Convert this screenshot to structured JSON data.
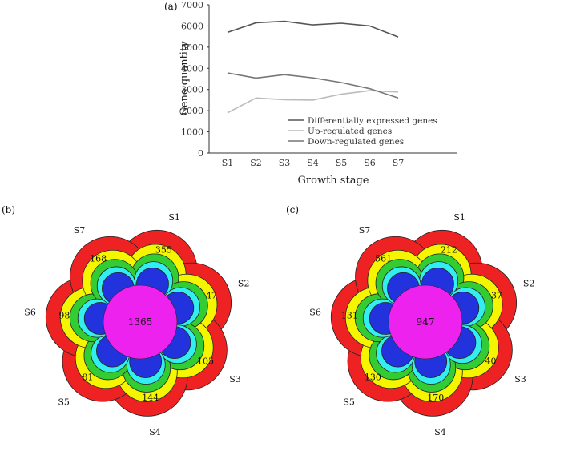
{
  "chart_data": [
    {
      "panel": "(a)",
      "type": "line",
      "x": [
        "S1",
        "S2",
        "S3",
        "S4",
        "S5",
        "S6",
        "S7"
      ],
      "series": [
        {
          "name": "Differentially expressed genes",
          "color": "#555555",
          "values": [
            5700,
            6150,
            6220,
            6050,
            6130,
            6000,
            5480
          ]
        },
        {
          "name": "Up-regulated genes",
          "color": "#bbbbbb",
          "values": [
            1900,
            2600,
            2520,
            2500,
            2780,
            2950,
            2880
          ]
        },
        {
          "name": "Down-regulated genes",
          "color": "#777777",
          "values": [
            3780,
            3540,
            3700,
            3550,
            3330,
            3040,
            2600
          ]
        }
      ],
      "xlabel": "Growth stage",
      "ylabel": "Gene quantity",
      "ylim": [
        0,
        7000
      ],
      "yticks": [
        0,
        1000,
        2000,
        3000,
        4000,
        5000,
        6000,
        7000
      ],
      "legend": "bottom-right",
      "grid": false
    },
    {
      "panel": "(b)",
      "type": "venn",
      "sets": [
        "S1",
        "S2",
        "S3",
        "S4",
        "S5",
        "S6",
        "S7"
      ],
      "unique": [
        355,
        47,
        105,
        144,
        81,
        98,
        168
      ],
      "center": 1365,
      "colors": {
        "outer": "#ee2222",
        "ring2": "#f5f500",
        "ring3": "#33cc33",
        "ring4": "#33eeee",
        "ring5": "#2233dd",
        "core": "#ee22ee"
      }
    },
    {
      "panel": "(c)",
      "type": "venn",
      "sets": [
        "S1",
        "S2",
        "S3",
        "S4",
        "S5",
        "S6",
        "S7"
      ],
      "unique": [
        212,
        37,
        40,
        170,
        130,
        131,
        561
      ],
      "center": 947,
      "colors": {
        "outer": "#ee2222",
        "ring2": "#f5f500",
        "ring3": "#33cc33",
        "ring4": "#33eeee",
        "ring5": "#2233dd",
        "core": "#ee22ee"
      }
    }
  ]
}
